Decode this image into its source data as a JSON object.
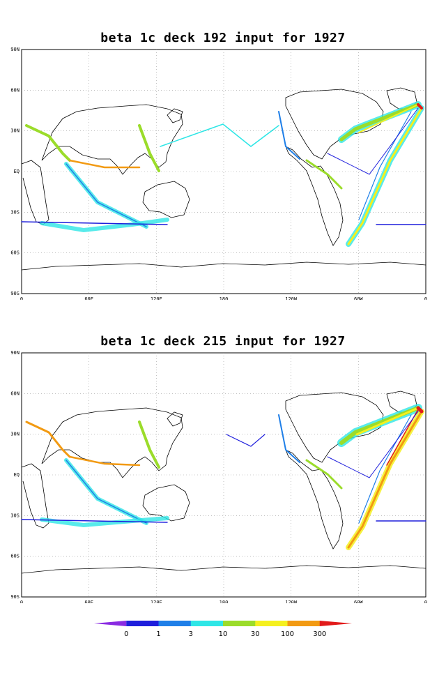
{
  "maps": [
    {
      "title": "beta 1c deck 192 input for 1927"
    },
    {
      "title": "beta 1c deck 215 input for 1927"
    }
  ],
  "axes": {
    "lat_labels": [
      "90N",
      "60N",
      "30N",
      "EQ",
      "30S",
      "60S",
      "90S"
    ],
    "lon_labels": [
      "0",
      "60E",
      "120E",
      "180",
      "120W",
      "60W",
      "0"
    ]
  },
  "colorbar": {
    "labels": [
      "0",
      "1",
      "3",
      "10",
      "30",
      "100",
      "300"
    ],
    "colors": [
      "#8a2be2",
      "#1e1edc",
      "#1f7fe8",
      "#2ee6e6",
      "#9bdc2a",
      "#f5f01e",
      "#f29a12",
      "#e21a1a"
    ]
  }
}
